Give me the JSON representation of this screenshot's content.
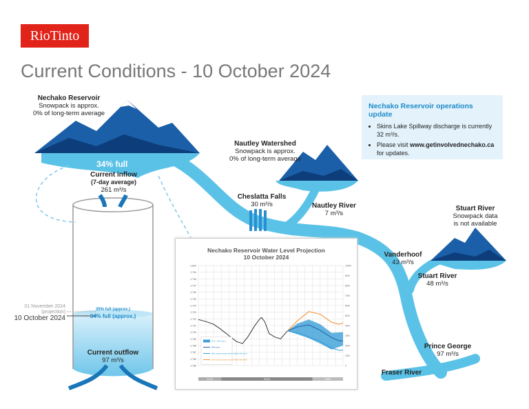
{
  "brand": {
    "logo": "RioTinto",
    "color": "#e2231a"
  },
  "title": "Current Conditions - 10 October 2024",
  "nechako": {
    "name": "Nechako Reservoir",
    "snow": "Snowpack is approx.",
    "snow2": "0% of long-term average",
    "full": "34% full"
  },
  "nautley_ws": {
    "name": "Nautley Watershed",
    "snow": "Snowpack is approx.",
    "snow2": "0% of long-term average"
  },
  "stuart_ws": {
    "name": "Stuart River",
    "snow": "Snowpack data",
    "snow2": "is not available"
  },
  "inflow": {
    "label": "Current inflow",
    "sub": "(7-day average)",
    "value": "261 m³/s"
  },
  "outflow": {
    "label": "Current outflow",
    "value": "97 m³/s"
  },
  "level": {
    "proj_date": "01 November 2024",
    "proj_note": "(projection)",
    "proj_full": "35% full (approx.)",
    "current_date": "10 October 2024",
    "current_full": "34% full (approx.)"
  },
  "sites": [
    {
      "name": "Cheslatta Falls",
      "value": "30 m³/s"
    },
    {
      "name": "Nautley River",
      "value": "7 m³/s"
    },
    {
      "name": "Vanderhoof",
      "value": "43 m³/s"
    },
    {
      "name": "Stuart River",
      "value": "48 m³/s"
    },
    {
      "name": "Prince George",
      "value": "97 m³/s"
    },
    {
      "name": "Fraser River",
      "value": ""
    }
  ],
  "update": {
    "title": "Nechako Reservoir operations update",
    "items": [
      "Skins Lake Spillway discharge is currently 32 m³/s."
    ],
    "visit_pre": "Please visit ",
    "visit_link": "www.getinvolvednechako.ca",
    "visit_post": " for updates."
  },
  "colors": {
    "water": "#5bc2e7",
    "mountain": "#1a5fa8",
    "dark": "#0d3d7a"
  },
  "chart_data": {
    "type": "line",
    "title": "Nechako Reservoir Water Level Projection",
    "subtitle": "10 October 2024",
    "ylim": [
      2785,
      2800
    ],
    "y2lim": [
      0,
      100
    ],
    "yticks": [
      "2,785",
      "2,786",
      "2,787",
      "2,788",
      "2,789",
      "2,790",
      "2,791",
      "2,792",
      "2,793",
      "2,794",
      "2,795",
      "2,796",
      "2,797",
      "2,798",
      "2,799",
      "2,800"
    ],
    "y2ticks": [
      "0",
      "10%",
      "20%",
      "30%",
      "40%",
      "50%",
      "60%",
      "70%",
      "80%",
      "90%",
      "100%"
    ],
    "years": [
      "2023",
      "2024",
      "2025"
    ],
    "legend": [
      "10% - 90% band",
      "50% level",
      "90% chance water will be above this level",
      "10% chance water will be above this level"
    ],
    "series": [
      {
        "key": "observed",
        "color": "#333",
        "points": [
          [
            0,
            2791.9
          ],
          [
            1,
            2791.6
          ],
          [
            2,
            2791.2
          ],
          [
            3,
            2790.4
          ],
          [
            4,
            2789.5
          ],
          [
            5,
            2788.6
          ],
          [
            5.8,
            2788.3
          ],
          [
            6.5,
            2789.3
          ],
          [
            7.3,
            2790.8
          ],
          [
            8,
            2791.9
          ],
          [
            8.3,
            2792.2
          ],
          [
            8.7,
            2791.6
          ],
          [
            9.3,
            2789.8
          ],
          [
            10,
            2789.3
          ],
          [
            10.8,
            2789
          ],
          [
            11.7,
            2790.2
          ]
        ]
      },
      {
        "key": "p50",
        "color": "#1a5fa8",
        "points": [
          [
            11.7,
            2790.2
          ],
          [
            13,
            2790.8
          ],
          [
            14.5,
            2791.1
          ],
          [
            16,
            2790.3
          ],
          [
            17.5,
            2789.2
          ],
          [
            18.5,
            2788.7
          ],
          [
            19,
            2788.7
          ]
        ]
      },
      {
        "key": "p90",
        "color": "#2a9be0",
        "points": [
          [
            11.7,
            2790.2
          ],
          [
            13,
            2789.9
          ],
          [
            14.5,
            2789.3
          ],
          [
            16,
            2788.6
          ],
          [
            17.5,
            2787.6
          ],
          [
            18.5,
            2787.3
          ],
          [
            19,
            2787.3
          ]
        ]
      },
      {
        "key": "p10",
        "color": "#f28c28",
        "points": [
          [
            11.7,
            2790.2
          ],
          [
            13,
            2791.7
          ],
          [
            14.5,
            2793.1
          ],
          [
            16,
            2792.7
          ],
          [
            17.5,
            2791.5
          ],
          [
            18.5,
            2791.2
          ],
          [
            19,
            2791.4
          ]
        ]
      }
    ],
    "band": {
      "upper": [
        [
          11.7,
          2790.2
        ],
        [
          13,
          2791.3
        ],
        [
          14.5,
          2791.9
        ],
        [
          16,
          2791.2
        ],
        [
          17.5,
          2789.9
        ],
        [
          19,
          2790
        ]
      ],
      "lower": [
        [
          11.7,
          2790.2
        ],
        [
          13,
          2789.7
        ],
        [
          14.5,
          2789.1
        ],
        [
          16,
          2788.3
        ],
        [
          17.5,
          2787.4
        ],
        [
          19,
          2788
        ]
      ]
    }
  }
}
